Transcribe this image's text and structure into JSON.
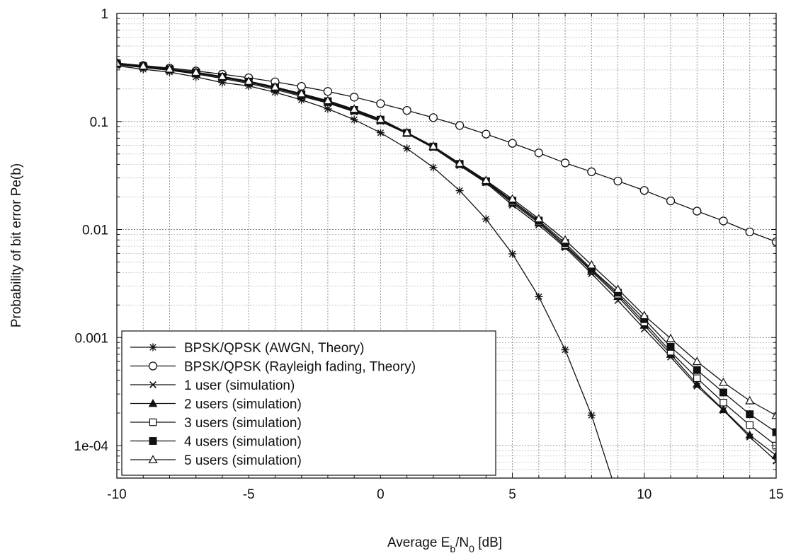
{
  "chart_data": {
    "type": "line",
    "title": "",
    "xlabel_main": "Average E",
    "xlabel_sub1": "b",
    "xlabel_mid": "/N",
    "xlabel_sub2": "0",
    "xlabel_tail": " [dB]",
    "ylabel": "Probability of bit error Pe(b)",
    "xlim": [
      -10,
      15
    ],
    "ylim": [
      5e-05,
      1
    ],
    "yscale": "log",
    "grid": true,
    "legend_position": "bottom-left",
    "x_ticks": [
      "-10",
      "-5",
      "0",
      "5",
      "10",
      "15"
    ],
    "y_ticks": [
      "1",
      "0.1",
      "0.01",
      "0.001",
      "1e-04"
    ],
    "x": [
      -10,
      -9,
      -8,
      -7,
      -6,
      -5,
      -4,
      -3,
      -2,
      -1,
      0,
      1,
      2,
      3,
      4,
      5,
      6,
      7,
      8,
      9,
      10,
      11,
      12,
      13,
      14,
      15
    ],
    "series": [
      {
        "name": "BPSK/QPSK (AWGN, Theory)",
        "marker": "asterisk",
        "color": "#111111",
        "values": [
          0.3274,
          0.3041,
          0.2865,
          0.2585,
          0.2289,
          0.2132,
          0.1861,
          0.1584,
          0.1309,
          0.104,
          0.0786,
          0.0563,
          0.0375,
          0.0229,
          0.0125,
          0.00595,
          0.00239,
          0.00077,
          0.000191,
          3.36e-05,
          null,
          null,
          null,
          null,
          null,
          null
        ]
      },
      {
        "name": "BPSK/QPSK (Rayleigh fading, Theory)",
        "marker": "circle-open",
        "color": "#111111",
        "values": [
          0.3464,
          0.3298,
          0.3121,
          0.2935,
          0.2739,
          0.2536,
          0.2327,
          0.2113,
          0.1896,
          0.168,
          0.1464,
          0.1265,
          0.1085,
          0.0918,
          0.0764,
          0.0628,
          0.0512,
          0.0413,
          0.0342,
          0.0281,
          0.023,
          0.0184,
          0.0148,
          0.012,
          0.0095,
          0.0077
        ]
      },
      {
        "name": "1 user  (simulation)",
        "marker": "x",
        "color": "#111111",
        "values": [
          0.335,
          0.316,
          0.298,
          0.275,
          0.25,
          0.225,
          0.198,
          0.171,
          0.148,
          0.123,
          0.1,
          0.0772,
          0.057,
          0.039,
          0.027,
          0.0168,
          0.011,
          0.0068,
          0.0039,
          0.0022,
          0.0012,
          0.00066,
          0.000355,
          0.000212,
          0.00012,
          7.2e-05
        ]
      },
      {
        "name": "2 users (simulation)",
        "marker": "triangle-filled",
        "color": "#111111",
        "values": [
          0.34,
          0.321,
          0.3,
          0.28,
          0.255,
          0.23,
          0.203,
          0.175,
          0.15,
          0.125,
          0.102,
          0.078,
          0.058,
          0.04,
          0.0275,
          0.0175,
          0.0115,
          0.007,
          0.0041,
          0.0024,
          0.0013,
          0.0007,
          0.00037,
          0.000215,
          0.000125,
          8.1e-05
        ]
      },
      {
        "name": "3 users (simulation)",
        "marker": "square-open",
        "color": "#111111",
        "values": [
          0.342,
          0.323,
          0.302,
          0.282,
          0.257,
          0.232,
          0.205,
          0.177,
          0.152,
          0.127,
          0.103,
          0.0782,
          0.0583,
          0.0402,
          0.0277,
          0.018,
          0.0118,
          0.0072,
          0.0042,
          0.0025,
          0.00138,
          0.00074,
          0.00042,
          0.00025,
          0.000155,
          0.0001
        ]
      },
      {
        "name": "4 users (simulation)",
        "marker": "square-filled",
        "color": "#111111",
        "values": [
          0.345,
          0.325,
          0.304,
          0.284,
          0.259,
          0.234,
          0.207,
          0.179,
          0.154,
          0.128,
          0.104,
          0.0785,
          0.0586,
          0.0405,
          0.028,
          0.0185,
          0.0121,
          0.0075,
          0.0043,
          0.0026,
          0.00148,
          0.00082,
          0.0005,
          0.00031,
          0.000195,
          0.000133
        ]
      },
      {
        "name": "5 users (simulation)",
        "marker": "triangle-open",
        "color": "#111111",
        "values": [
          0.348,
          0.327,
          0.306,
          0.286,
          0.261,
          0.236,
          0.209,
          0.181,
          0.156,
          0.13,
          0.105,
          0.079,
          0.059,
          0.041,
          0.0285,
          0.0192,
          0.0126,
          0.008,
          0.0047,
          0.0028,
          0.0016,
          0.00098,
          0.0006,
          0.000385,
          0.00026,
          0.00019
        ]
      }
    ]
  }
}
